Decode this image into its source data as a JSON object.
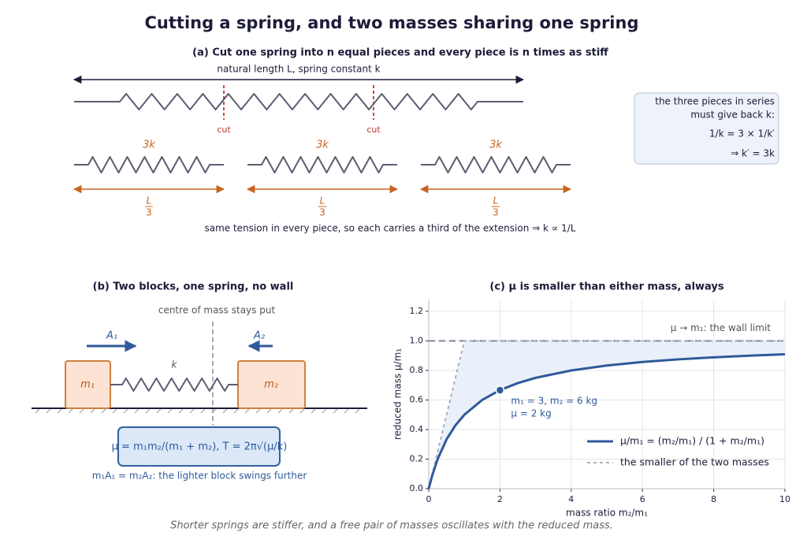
{
  "title": "Cutting a spring, and two masses sharing one spring",
  "panel_a": {
    "title": "(a)  Cut one spring into n equal pieces and every piece is n times as stiff",
    "length_label": "natural length L,  spring constant k",
    "cut_labels": [
      "cut",
      "cut"
    ],
    "piece_constants": [
      "3k",
      "3k",
      "3k"
    ],
    "piece_lengths": [
      {
        "numerator": "L",
        "denominator": "3"
      },
      {
        "numerator": "L",
        "denominator": "3"
      },
      {
        "numerator": "L",
        "denominator": "3"
      }
    ],
    "note": "same tension in every piece, so each carries a third of the extension  ⇒  k ∝ 1/L",
    "box_lines": [
      "the three pieces in series",
      "must give back k:",
      "1/k = 3 × 1/k′",
      "⇒ k′ = 3k"
    ]
  },
  "panel_b": {
    "title": "(b)  Two blocks, one spring, no wall",
    "centre_label": "centre of mass stays put",
    "amplitude_labels": [
      "A₁",
      "A₂"
    ],
    "spring_label": "k",
    "mass_labels": [
      "m₁",
      "m₂"
    ],
    "formula": "μ = m₁m₂/(m₁ + m₂),   T = 2π√(μ/k)",
    "note": "m₁A₁ = m₂A₂:  the lighter block swings further"
  },
  "chart_data": {
    "type": "line",
    "title": "(c)  μ is smaller than either mass, always",
    "x_label": "mass ratio  m₂/m₁",
    "y_label": "reduced mass  μ/m₁",
    "series": [
      {
        "name": "μ/m₁ = (m₂/m₁) / (1 + m₂/m₁)",
        "color": "#2f5a9a",
        "style": "solid",
        "x": [
          0,
          0.1,
          0.25,
          0.5,
          0.75,
          1,
          1.5,
          2,
          2.5,
          3,
          4,
          5,
          6,
          7,
          8,
          9,
          10
        ],
        "values": [
          0,
          0.0909,
          0.2,
          0.3333,
          0.4286,
          0.5,
          0.6,
          0.6667,
          0.7143,
          0.75,
          0.8,
          0.8333,
          0.8571,
          0.875,
          0.8889,
          0.9,
          0.9091
        ]
      },
      {
        "name": "the smaller of the two masses",
        "color": "#a0a8b8",
        "style": "dashed",
        "x": [
          0,
          1,
          10
        ],
        "values": [
          0,
          1,
          1
        ]
      }
    ],
    "hline": {
      "value": 1,
      "label": "μ → m₁:  the wall limit",
      "color": "#80829a"
    },
    "point": {
      "x": 2,
      "y": 0.6667,
      "labels": [
        "m₁ = 3, m₂ = 6 kg",
        "μ = 2 kg"
      ]
    },
    "xlim": [
      0,
      10
    ],
    "xticks": [
      0,
      2,
      4,
      6,
      8,
      10
    ],
    "ylim": [
      0,
      1.28
    ],
    "yticks": [
      {
        "value": 0,
        "label": "0.0"
      },
      0.2,
      0.4,
      0.6,
      0.8,
      {
        "value": 1,
        "label": "1.0"
      },
      1.2
    ],
    "grid": true,
    "legend": "lower right"
  },
  "footer": "Shorter springs are stiffer, and a free pair of masses oscillates with the reduced mass."
}
